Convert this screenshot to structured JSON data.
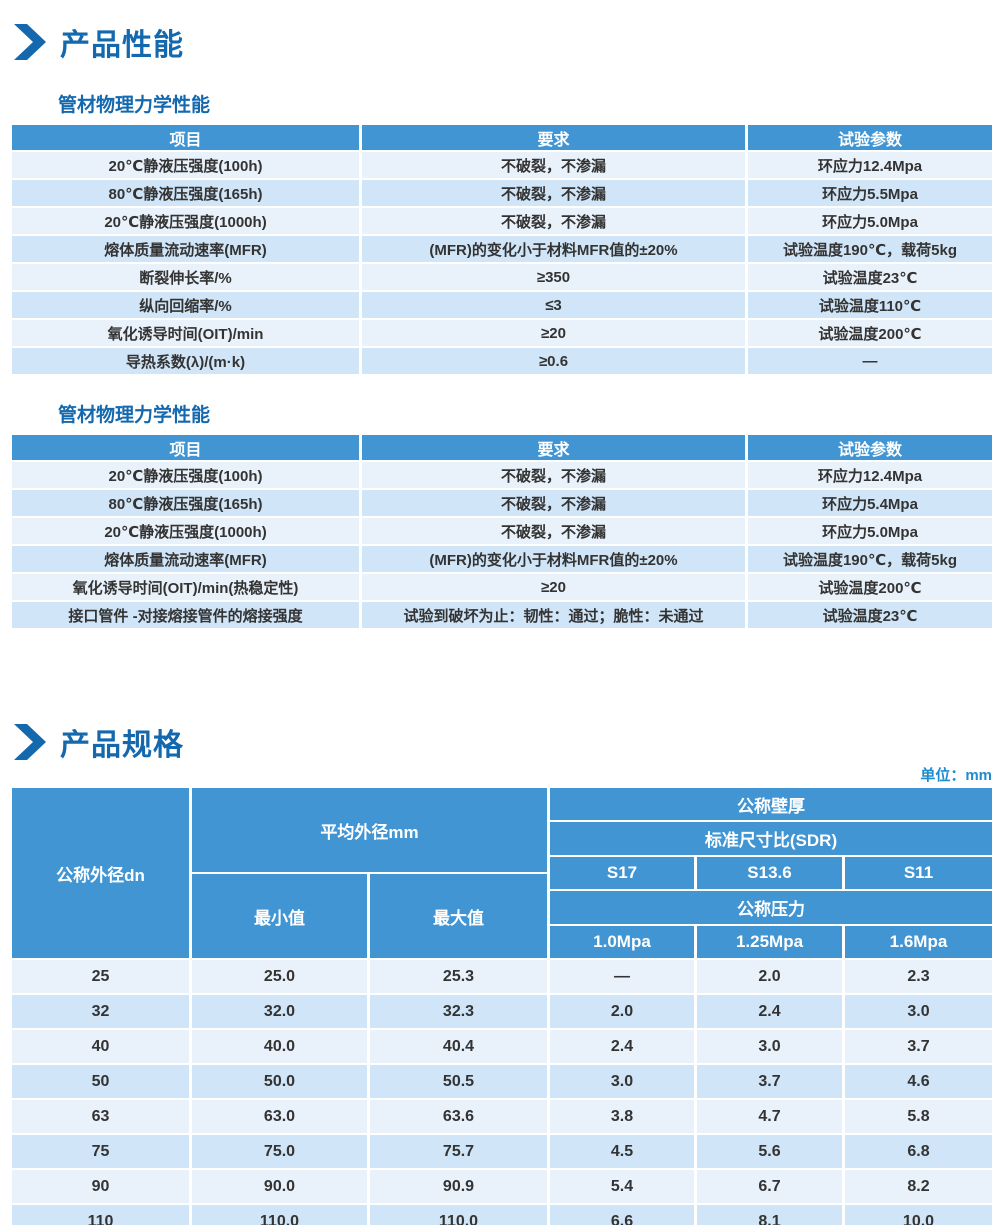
{
  "sections": {
    "performance": {
      "title": "产品性能"
    },
    "specs": {
      "title": "产品规格"
    }
  },
  "icons": {
    "section_marker": "chevron-right-icon"
  },
  "colors": {
    "heading_blue": "#1368AE",
    "table_header_blue": "#4195D3",
    "row_light": "#E9F2FB",
    "row_dark": "#D0E5F7",
    "unit_label_blue": "#1E8CCE",
    "body_text": "#333333"
  },
  "perf_tables": [
    {
      "subtitle": "管材物理力学性能",
      "headers": [
        "项目",
        "要求",
        "试验参数"
      ],
      "rows": [
        [
          "20℃静液压强度(100h)",
          "不破裂，不渗漏",
          "环应力12.4Mpa"
        ],
        [
          "80℃静液压强度(165h)",
          "不破裂，不渗漏",
          "环应力5.5Mpa"
        ],
        [
          "20℃静液压强度(1000h)",
          "不破裂，不渗漏",
          "环应力5.0Mpa"
        ],
        [
          "熔体质量流动速率(MFR)",
          "(MFR)的变化小于材料MFR值的±20%",
          "试验温度190℃，载荷5kg"
        ],
        [
          "断裂伸长率/%",
          "≥350",
          "试验温度23℃"
        ],
        [
          "纵向回缩率/%",
          "≤3",
          "试验温度110℃"
        ],
        [
          "氧化诱导时间(OIT)/min",
          "≥20",
          "试验温度200℃"
        ],
        [
          "导热系数(λ)/(m·k)",
          "≥0.6",
          "—"
        ]
      ]
    },
    {
      "subtitle": "管材物理力学性能",
      "headers": [
        "项目",
        "要求",
        "试验参数"
      ],
      "rows": [
        [
          "20℃静液压强度(100h)",
          "不破裂，不渗漏",
          "环应力12.4Mpa"
        ],
        [
          "80℃静液压强度(165h)",
          "不破裂，不渗漏",
          "环应力5.4Mpa"
        ],
        [
          "20℃静液压强度(1000h)",
          "不破裂，不渗漏",
          "环应力5.0Mpa"
        ],
        [
          "熔体质量流动速率(MFR)",
          "(MFR)的变化小于材料MFR值的±20%",
          "试验温度190℃，载荷5kg"
        ],
        [
          "氧化诱导时间(OIT)/min(热稳定性)",
          "≥20",
          "试验温度200℃"
        ],
        [
          "接口管件 -对接熔接管件的熔接强度",
          "试验到破坏为止：韧性：通过；脆性：未通过",
          "试验温度23℃"
        ]
      ]
    }
  ],
  "spec_table": {
    "unit": "单位：mm",
    "header": {
      "col_dn": "公称外径dn",
      "avg_od": "平均外径mm",
      "min": "最小值",
      "max": "最大值",
      "wall": "公称壁厚",
      "sdr": "标准尺寸比(SDR)",
      "sdr_values": [
        "S17",
        "S13.6",
        "S11"
      ],
      "pressure": "公称压力",
      "pressure_values": [
        "1.0Mpa",
        "1.25Mpa",
        "1.6Mpa"
      ]
    },
    "rows": [
      [
        "25",
        "25.0",
        "25.3",
        "—",
        "2.0",
        "2.3"
      ],
      [
        "32",
        "32.0",
        "32.3",
        "2.0",
        "2.4",
        "3.0"
      ],
      [
        "40",
        "40.0",
        "40.4",
        "2.4",
        "3.0",
        "3.7"
      ],
      [
        "50",
        "50.0",
        "50.5",
        "3.0",
        "3.7",
        "4.6"
      ],
      [
        "63",
        "63.0",
        "63.6",
        "3.8",
        "4.7",
        "5.8"
      ],
      [
        "75",
        "75.0",
        "75.7",
        "4.5",
        "5.6",
        "6.8"
      ],
      [
        "90",
        "90.0",
        "90.9",
        "5.4",
        "6.7",
        "8.2"
      ],
      [
        "110",
        "110.0",
        "110.0",
        "6.6",
        "8.1",
        "10.0"
      ]
    ]
  }
}
